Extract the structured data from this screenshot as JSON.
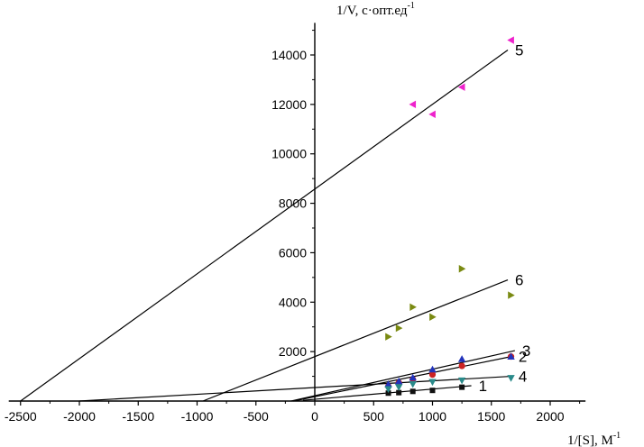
{
  "chart_data": {
    "type": "scatter",
    "title": "",
    "ylabel": "1/V, с·опт.ед",
    "ylabel_sup": "-1",
    "xlabel": "1/[S], М",
    "xlabel_sup": "-1",
    "xlim": [
      -2600,
      2300
    ],
    "ylim": [
      0,
      15300
    ],
    "x_ticks": [
      -2500,
      -2000,
      -1500,
      -1000,
      -500,
      0,
      500,
      1000,
      1500,
      2000
    ],
    "y_ticks": [
      2000,
      4000,
      6000,
      8000,
      10000,
      12000,
      14000
    ],
    "series": [
      {
        "name": "1",
        "marker": "square",
        "color": "#111111",
        "points": [
          [
            625,
            320
          ],
          [
            714,
            340
          ],
          [
            833,
            390
          ],
          [
            1000,
            430
          ],
          [
            1250,
            560
          ]
        ],
        "fit": {
          "x0": -100,
          "y0": 30,
          "x1": 1330,
          "y1": 620
        }
      },
      {
        "name": "2",
        "marker": "circle",
        "color": "#cc2222",
        "points": [
          [
            625,
            600
          ],
          [
            714,
            740
          ],
          [
            833,
            880
          ],
          [
            1000,
            1070
          ],
          [
            1250,
            1420
          ],
          [
            1667,
            1800
          ]
        ],
        "fit": {
          "x0": -180,
          "y0": 0,
          "x1": 1670,
          "y1": 1800
        }
      },
      {
        "name": "3",
        "marker": "triangle-up",
        "color": "#2233bb",
        "points": [
          [
            625,
            680
          ],
          [
            714,
            800
          ],
          [
            833,
            950
          ],
          [
            1000,
            1280
          ],
          [
            1250,
            1700
          ],
          [
            1667,
            1800
          ]
        ],
        "fit": {
          "x0": -200,
          "y0": 0,
          "x1": 1700,
          "y1": 2040
        }
      },
      {
        "name": "4",
        "marker": "triangle-down",
        "color": "#2a8a8a",
        "points": [
          [
            625,
            480
          ],
          [
            714,
            560
          ],
          [
            833,
            680
          ],
          [
            1000,
            770
          ],
          [
            1250,
            830
          ],
          [
            1667,
            930
          ]
        ],
        "fit": {
          "x0": -2000,
          "y0": 0,
          "x1": 1670,
          "y1": 1000
        }
      },
      {
        "name": "5",
        "marker": "triangle-left",
        "color": "#ee22cc",
        "points": [
          [
            833,
            12000
          ],
          [
            1000,
            11600
          ],
          [
            1250,
            12700
          ],
          [
            1667,
            14600
          ]
        ],
        "fit": {
          "x0": -2500,
          "y0": 0,
          "x1": 1640,
          "y1": 14200
        }
      },
      {
        "name": "6",
        "marker": "triangle-right",
        "color": "#7a8a12",
        "points": [
          [
            625,
            2600
          ],
          [
            714,
            2950
          ],
          [
            833,
            3800
          ],
          [
            1000,
            3400
          ],
          [
            1250,
            5350
          ],
          [
            1667,
            4280
          ]
        ],
        "fit": {
          "x0": -950,
          "y0": 0,
          "x1": 1640,
          "y1": 4900
        }
      }
    ]
  }
}
